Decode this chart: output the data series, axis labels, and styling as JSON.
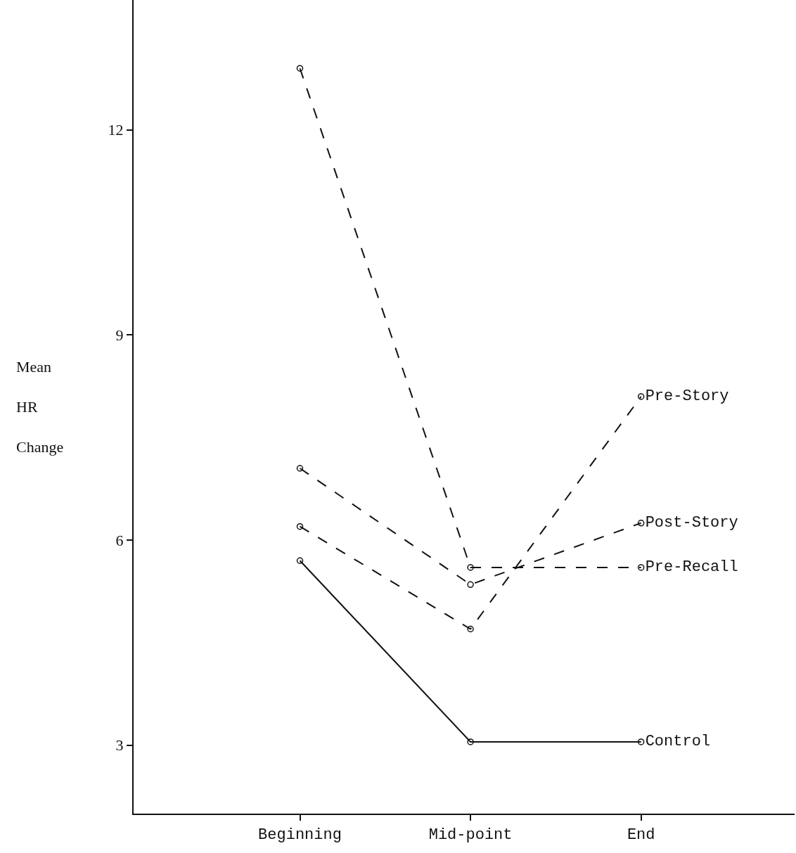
{
  "chart_data": {
    "type": "line",
    "ylabel": "Mean HR Change",
    "categories": [
      "Beginning",
      "Mid-point",
      "End"
    ],
    "series": [
      {
        "name": "Pre-Story",
        "color": "#111111",
        "values": [
          6.2,
          4.7,
          8.1
        ],
        "line_style": "dashed"
      },
      {
        "name": "Post-Story",
        "color": "#111111",
        "values": [
          7.05,
          5.35,
          6.25
        ],
        "line_style": "dashed"
      },
      {
        "name": "Pre-Recall",
        "color": "#111111",
        "values": [
          12.9,
          5.6,
          5.6
        ],
        "line_style": "dashed"
      },
      {
        "name": "Control",
        "color": "#111111",
        "values": [
          5.7,
          3.05,
          3.05
        ],
        "line_style": "solid"
      }
    ],
    "ylim": [
      2,
      13.9
    ],
    "yticks": [
      3,
      6,
      9,
      12
    ],
    "legend": false,
    "marker": "circle"
  }
}
